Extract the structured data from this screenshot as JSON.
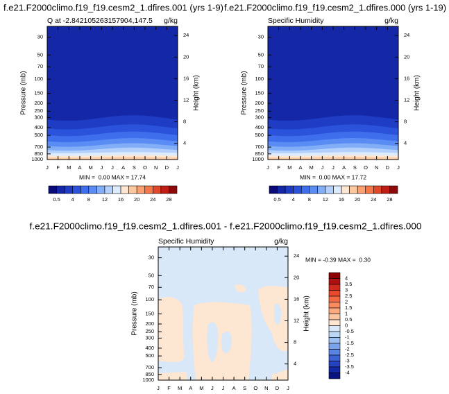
{
  "chart_data": [
    {
      "type": "contour",
      "title": "f.e21.F2000climo.f19_f19.cesm2_1.dfires.001 (yrs 1-9)",
      "subtitle_left": "Q at -2.842105263157904,147.5",
      "subtitle_right": "g/kg",
      "ylabel": "Pressure (mb)",
      "y2label": "Height (km)",
      "log_y": true,
      "ylim": [
        1000,
        22
      ],
      "yticks": [
        30,
        50,
        70,
        100,
        150,
        200,
        250,
        300,
        400,
        500,
        700,
        850,
        1000
      ],
      "y2lim": [
        1,
        25.7
      ],
      "y2ticks": [
        4,
        8,
        12,
        16,
        20,
        24
      ],
      "categories": [
        "J",
        "F",
        "M",
        "A",
        "M",
        "J",
        "J",
        "A",
        "S",
        "O",
        "N",
        "D",
        "J"
      ],
      "stats": "MIN =  0.00 MAX = 17.74",
      "colorbar": {
        "orientation": "horizontal",
        "labels": [
          "0.5",
          "4",
          "8",
          "12",
          "16",
          "20",
          "24",
          "28"
        ],
        "colors": [
          "#0a0a78",
          "#1427a6",
          "#1e3cc4",
          "#2a52da",
          "#3e6eec",
          "#5a8cf4",
          "#82aef8",
          "#b2d0fb",
          "#dcebfd",
          "#fde6d2",
          "#fcc8a0",
          "#fba070",
          "#f57848",
          "#e04828",
          "#c01e14",
          "#8c0a0a"
        ]
      }
    },
    {
      "type": "contour",
      "title": "f.e21.F2000climo.f19_f19.cesm2_1.dfires.000 (yrs 1-19)",
      "subtitle_left": "Specific Humidity",
      "subtitle_right": "g/kg",
      "ylabel": "Pressure (mb)",
      "y2label": "Height (km)",
      "log_y": true,
      "ylim": [
        1000,
        22
      ],
      "yticks": [
        30,
        50,
        70,
        100,
        150,
        200,
        250,
        300,
        400,
        500,
        700,
        850,
        1000
      ],
      "y2lim": [
        1,
        25.7
      ],
      "y2ticks": [
        4,
        8,
        12,
        16,
        20,
        24
      ],
      "categories": [
        "J",
        "F",
        "M",
        "A",
        "M",
        "J",
        "J",
        "A",
        "S",
        "O",
        "N",
        "D",
        "J"
      ],
      "stats": "MIN =  0.00 MAX = 17.72",
      "colorbar": {
        "orientation": "horizontal",
        "labels": [
          "0.5",
          "4",
          "8",
          "12",
          "16",
          "20",
          "24",
          "28"
        ],
        "colors": [
          "#0a0a78",
          "#1427a6",
          "#1e3cc4",
          "#2a52da",
          "#3e6eec",
          "#5a8cf4",
          "#82aef8",
          "#b2d0fb",
          "#dcebfd",
          "#fde6d2",
          "#fcc8a0",
          "#fba070",
          "#f57848",
          "#e04828",
          "#c01e14",
          "#8c0a0a"
        ]
      }
    },
    {
      "type": "contour",
      "title": "f.e21.F2000climo.f19_f19.cesm2_1.dfires.001 - f.e21.F2000climo.f19_f19.cesm2_1.dfires.000",
      "subtitle_left": "Specific Humidity",
      "subtitle_right": "g/kg",
      "ylabel": "Pressure (mb)",
      "y2label": "Height (km)",
      "log_y": true,
      "ylim": [
        1000,
        22
      ],
      "yticks": [
        30,
        50,
        70,
        100,
        150,
        200,
        250,
        300,
        400,
        500,
        700,
        850,
        1000
      ],
      "y2lim": [
        1,
        25.7
      ],
      "y2ticks": [
        4,
        8,
        12,
        16,
        20,
        24
      ],
      "categories": [
        "J",
        "F",
        "M",
        "A",
        "M",
        "J",
        "J",
        "A",
        "S",
        "O",
        "N",
        "D",
        "J"
      ],
      "stats": "MIN = -0.39 MAX =  0.30",
      "colorbar": {
        "orientation": "vertical",
        "labels": [
          "4",
          "3.5",
          "3",
          "2.5",
          "2",
          "1.5",
          "1",
          "0.5",
          "0",
          "-0.5",
          "-1",
          "-1.5",
          "-2",
          "-2.5",
          "-3",
          "-3.5",
          "-4"
        ],
        "colors": [
          "#8b0000",
          "#b01010",
          "#d02a1c",
          "#e8482c",
          "#f26a44",
          "#f88c60",
          "#fbaa80",
          "#fcc6a2",
          "#fde6d2",
          "#d8e8f8",
          "#bcd7f5",
          "#9cc0f2",
          "#7aa3ec",
          "#5a84e2",
          "#3d62d4",
          "#2644c0",
          "#1429a6",
          "#081480"
        ]
      }
    }
  ]
}
